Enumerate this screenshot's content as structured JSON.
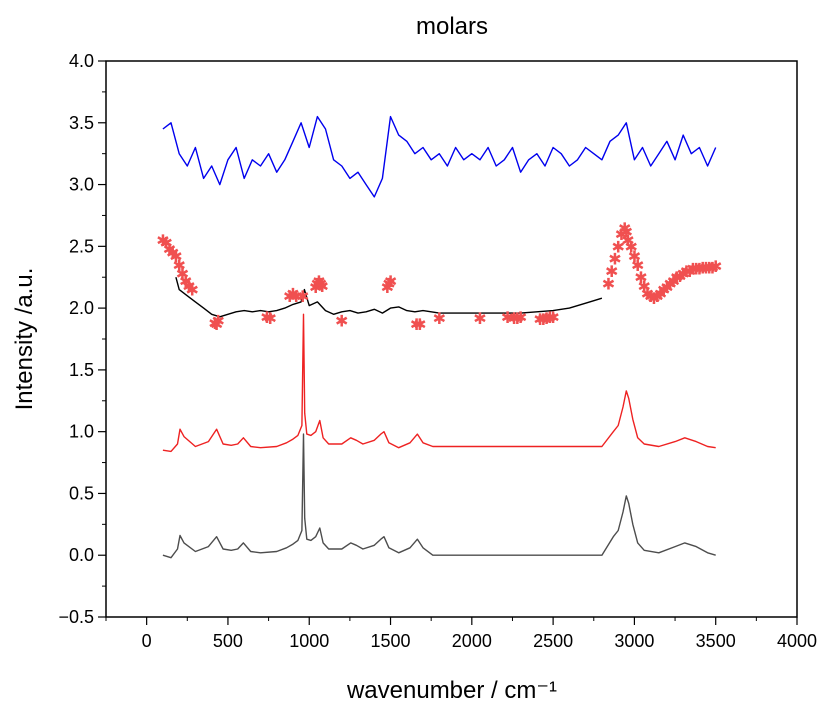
{
  "chart_data": {
    "type": "line",
    "title": "molars",
    "xlabel": "wavenumber / cm⁻¹",
    "ylabel": "Intensity /a.u.",
    "xlim": [
      -250,
      4000
    ],
    "ylim": [
      -0.5,
      4.0
    ],
    "x_ticks": [
      "0",
      "500",
      "1000",
      "1500",
      "2000",
      "2500",
      "3000",
      "3500",
      "4000"
    ],
    "y_ticks": [
      "−0.5",
      "0.0",
      "0.5",
      "1.0",
      "1.5",
      "2.0",
      "2.5",
      "3.0",
      "3.5",
      "4.0"
    ],
    "x_tick_values": [
      0,
      500,
      1000,
      1500,
      2000,
      2500,
      3000,
      3500,
      4000
    ],
    "y_tick_values": [
      -0.5,
      0.0,
      0.5,
      1.0,
      1.5,
      2.0,
      2.5,
      3.0,
      3.5,
      4.0
    ],
    "grid": false,
    "legend": "none",
    "series": [
      {
        "color": "#4d4d4d",
        "marker": "none",
        "x": [
          100,
          150,
          190,
          205,
          230,
          300,
          380,
          430,
          470,
          520,
          560,
          595,
          640,
          700,
          800,
          860,
          900,
          930,
          955,
          965,
          972,
          985,
          1010,
          1040,
          1065,
          1085,
          1120,
          1200,
          1255,
          1290,
          1330,
          1400,
          1440,
          1460,
          1490,
          1550,
          1620,
          1665,
          1700,
          1760,
          2000,
          2500,
          2800,
          2870,
          2900,
          2930,
          2950,
          2965,
          2990,
          3020,
          3060,
          3150,
          3250,
          3310,
          3380,
          3450,
          3500
        ],
        "y": [
          0.0,
          -0.02,
          0.05,
          0.16,
          0.1,
          0.03,
          0.07,
          0.15,
          0.05,
          0.04,
          0.05,
          0.1,
          0.03,
          0.02,
          0.03,
          0.06,
          0.09,
          0.12,
          0.2,
          0.98,
          0.3,
          0.13,
          0.12,
          0.15,
          0.22,
          0.1,
          0.05,
          0.05,
          0.1,
          0.08,
          0.05,
          0.08,
          0.13,
          0.15,
          0.06,
          0.02,
          0.06,
          0.13,
          0.06,
          0.0,
          0.0,
          0.0,
          0.0,
          0.15,
          0.2,
          0.35,
          0.48,
          0.42,
          0.25,
          0.1,
          0.04,
          0.02,
          0.07,
          0.1,
          0.07,
          0.02,
          0.0
        ]
      },
      {
        "color": "#ee2222",
        "marker": "none",
        "x": [
          100,
          150,
          190,
          205,
          230,
          300,
          380,
          430,
          470,
          520,
          560,
          595,
          640,
          700,
          800,
          860,
          900,
          930,
          955,
          965,
          972,
          985,
          1010,
          1040,
          1065,
          1085,
          1120,
          1200,
          1255,
          1290,
          1330,
          1400,
          1440,
          1460,
          1490,
          1550,
          1620,
          1665,
          1700,
          1760,
          2000,
          2500,
          2800,
          2870,
          2900,
          2930,
          2950,
          2965,
          2990,
          3020,
          3060,
          3150,
          3250,
          3310,
          3380,
          3450,
          3500
        ],
        "y": [
          0.85,
          0.84,
          0.9,
          1.02,
          0.96,
          0.88,
          0.92,
          1.02,
          0.9,
          0.89,
          0.9,
          0.95,
          0.88,
          0.87,
          0.88,
          0.91,
          0.94,
          0.97,
          1.05,
          1.95,
          1.15,
          0.98,
          0.97,
          1.0,
          1.09,
          0.95,
          0.9,
          0.9,
          0.95,
          0.93,
          0.9,
          0.93,
          0.98,
          1.0,
          0.91,
          0.87,
          0.91,
          0.98,
          0.91,
          0.88,
          0.88,
          0.88,
          0.88,
          1.0,
          1.05,
          1.2,
          1.33,
          1.27,
          1.1,
          0.95,
          0.9,
          0.88,
          0.92,
          0.95,
          0.92,
          0.88,
          0.87
        ]
      },
      {
        "color": "#000000",
        "marker": "none",
        "x": [
          180,
          200,
          250,
          300,
          350,
          400,
          450,
          500,
          550,
          600,
          650,
          700,
          750,
          800,
          850,
          900,
          950,
          970,
          1000,
          1050,
          1100,
          1150,
          1200,
          1250,
          1300,
          1350,
          1400,
          1450,
          1500,
          1550,
          1600,
          1650,
          1700,
          1750,
          1800,
          1900,
          2000,
          2100,
          2200,
          2300,
          2400,
          2500,
          2600,
          2700,
          2750,
          2800
        ],
        "y": [
          2.25,
          2.15,
          2.1,
          2.05,
          2.0,
          1.95,
          1.93,
          1.95,
          1.97,
          1.98,
          1.97,
          1.98,
          1.97,
          1.98,
          2.0,
          2.03,
          2.05,
          2.15,
          2.02,
          2.05,
          1.98,
          1.95,
          1.97,
          1.98,
          1.96,
          1.97,
          1.99,
          1.96,
          2.0,
          2.01,
          1.98,
          1.97,
          1.98,
          1.97,
          1.96,
          1.96,
          1.96,
          1.96,
          1.96,
          1.96,
          1.97,
          1.98,
          2.0,
          2.04,
          2.06,
          2.08
        ]
      },
      {
        "color": "#f05050",
        "marker": "star",
        "x": [
          100,
          120,
          140,
          160,
          180,
          200,
          220,
          240,
          260,
          280,
          420,
          430,
          440,
          740,
          760,
          880,
          900,
          920,
          960,
          1040,
          1050,
          1060,
          1070,
          1080,
          1200,
          1480,
          1490,
          1500,
          1660,
          1680,
          1800,
          2050,
          2220,
          2260,
          2280,
          2300,
          2420,
          2440,
          2460,
          2480,
          2500,
          2840,
          2860,
          2880,
          2900,
          2920,
          2940,
          2950,
          2960,
          2980,
          3000,
          3020,
          3040,
          3060,
          3080,
          3100,
          3120,
          3140,
          3160,
          3180,
          3200,
          3220,
          3240,
          3260,
          3280,
          3300,
          3320,
          3340,
          3360,
          3380,
          3400,
          3420,
          3440,
          3460,
          3480,
          3500
        ],
        "y": [
          2.55,
          2.53,
          2.48,
          2.45,
          2.42,
          2.35,
          2.28,
          2.22,
          2.18,
          2.15,
          1.88,
          1.87,
          1.9,
          1.93,
          1.92,
          2.1,
          2.12,
          2.1,
          2.1,
          2.17,
          2.2,
          2.22,
          2.2,
          2.18,
          1.9,
          2.17,
          2.2,
          2.22,
          1.87,
          1.87,
          1.92,
          1.92,
          1.93,
          1.92,
          1.92,
          1.93,
          1.91,
          1.91,
          1.92,
          1.93,
          1.93,
          2.2,
          2.3,
          2.4,
          2.5,
          2.6,
          2.65,
          2.62,
          2.55,
          2.5,
          2.42,
          2.35,
          2.25,
          2.18,
          2.12,
          2.1,
          2.08,
          2.1,
          2.12,
          2.15,
          2.17,
          2.2,
          2.22,
          2.25,
          2.26,
          2.28,
          2.3,
          2.3,
          2.32,
          2.32,
          2.32,
          2.33,
          2.33,
          2.33,
          2.33,
          2.34
        ]
      },
      {
        "color": "#0000ee",
        "marker": "none",
        "x": [
          100,
          150,
          200,
          250,
          300,
          350,
          400,
          450,
          500,
          550,
          600,
          650,
          700,
          750,
          800,
          850,
          900,
          950,
          1000,
          1050,
          1100,
          1150,
          1200,
          1250,
          1300,
          1350,
          1400,
          1450,
          1500,
          1550,
          1600,
          1650,
          1700,
          1750,
          1800,
          1850,
          1900,
          1950,
          2000,
          2050,
          2100,
          2150,
          2200,
          2250,
          2300,
          2350,
          2400,
          2450,
          2500,
          2550,
          2600,
          2650,
          2700,
          2750,
          2800,
          2850,
          2900,
          2950,
          3000,
          3050,
          3100,
          3150,
          3200,
          3250,
          3300,
          3350,
          3400,
          3450,
          3500
        ],
        "y": [
          3.45,
          3.5,
          3.25,
          3.15,
          3.3,
          3.05,
          3.15,
          3.0,
          3.2,
          3.3,
          3.05,
          3.2,
          3.15,
          3.25,
          3.1,
          3.2,
          3.35,
          3.5,
          3.3,
          3.55,
          3.45,
          3.2,
          3.15,
          3.05,
          3.1,
          3.0,
          2.9,
          3.05,
          3.55,
          3.4,
          3.35,
          3.25,
          3.3,
          3.2,
          3.25,
          3.15,
          3.3,
          3.2,
          3.25,
          3.2,
          3.3,
          3.15,
          3.2,
          3.3,
          3.1,
          3.2,
          3.25,
          3.15,
          3.3,
          3.25,
          3.15,
          3.2,
          3.3,
          3.25,
          3.2,
          3.35,
          3.4,
          3.5,
          3.2,
          3.3,
          3.15,
          3.25,
          3.35,
          3.2,
          3.4,
          3.25,
          3.3,
          3.15,
          3.3
        ]
      }
    ]
  }
}
